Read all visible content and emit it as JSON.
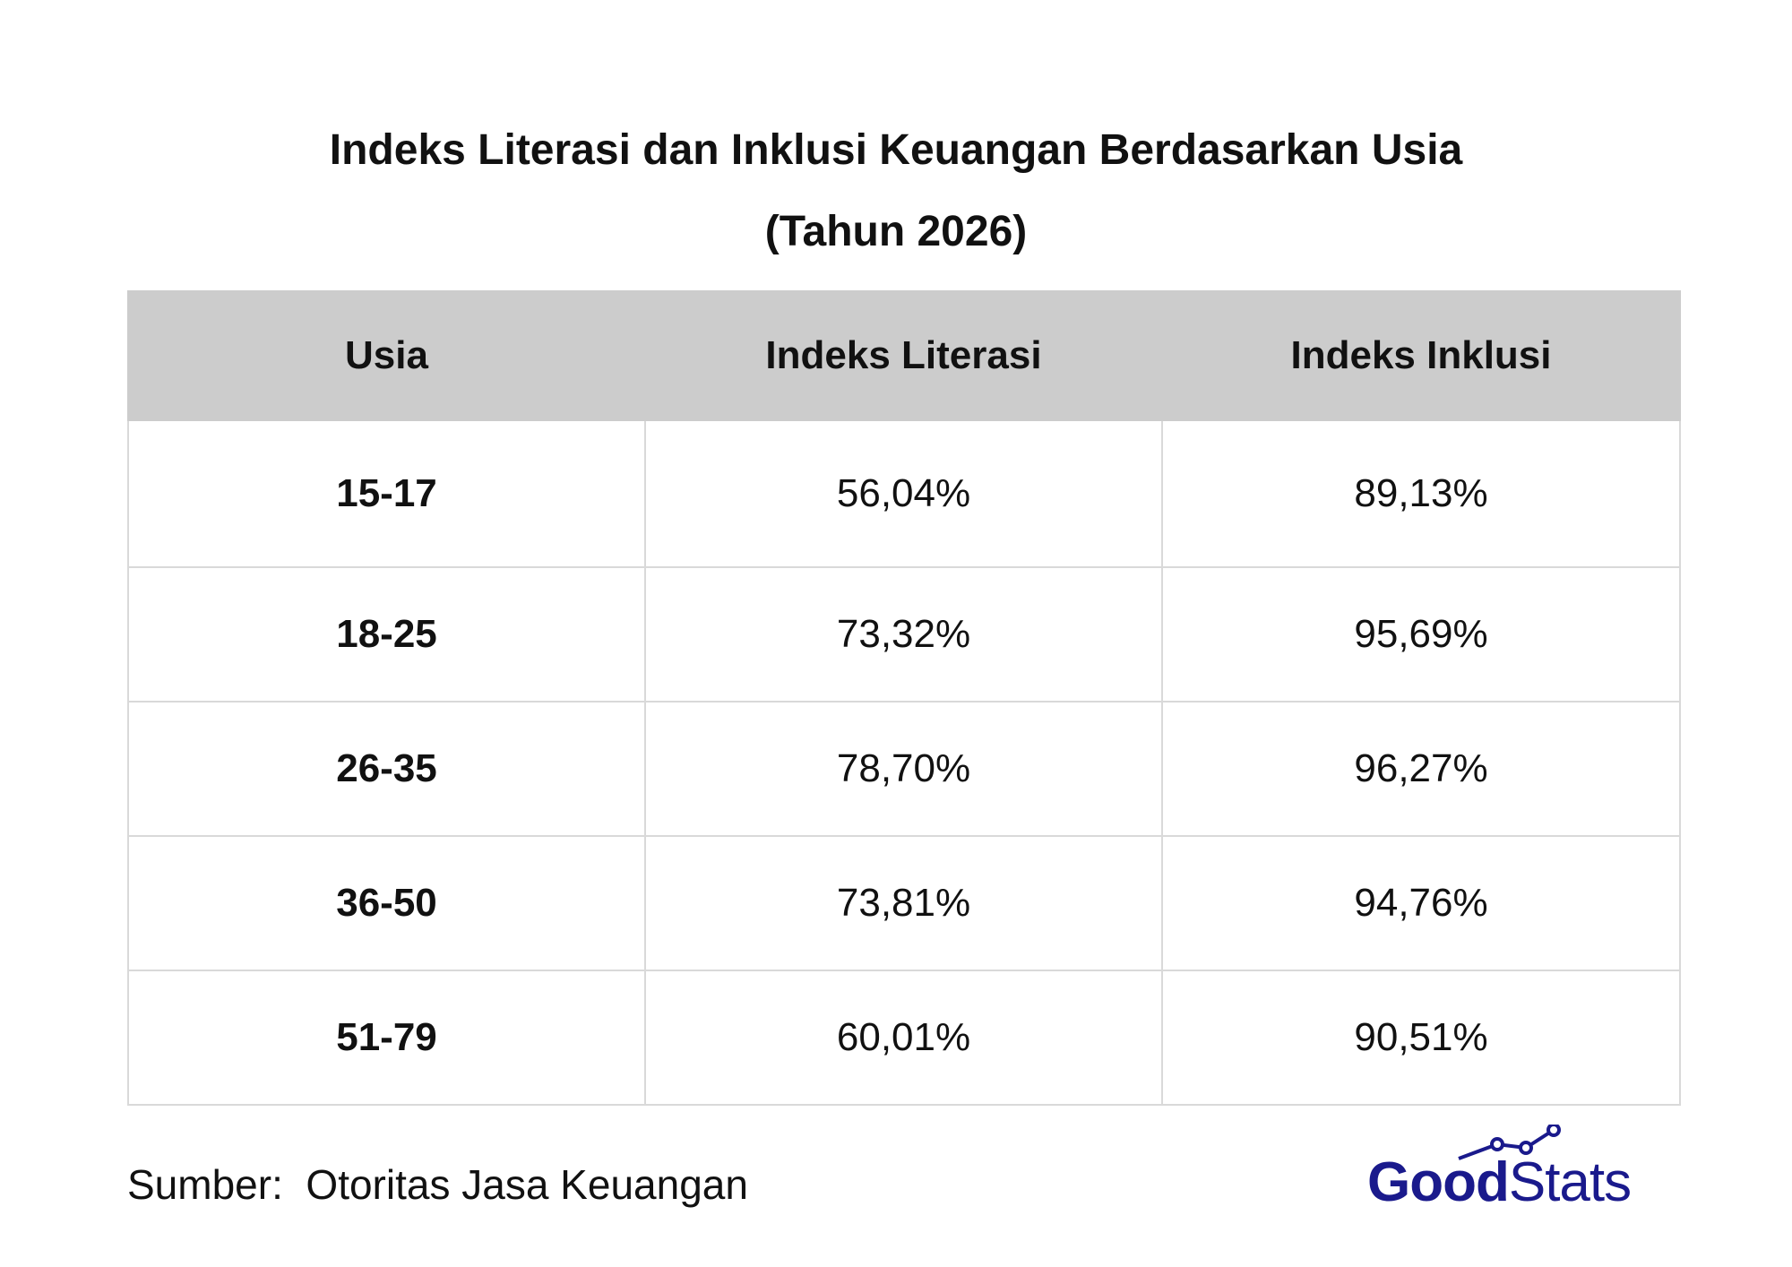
{
  "chart_data": {
    "type": "table",
    "title": "Indeks Literasi dan Inklusi Keuangan Berdasarkan Usia",
    "subtitle": "(Tahun 2026)",
    "columns": [
      "Usia",
      "Indeks Literasi",
      "Indeks Inklusi"
    ],
    "rows": [
      {
        "age": "15-17",
        "literasi": "56,04%",
        "inklusi": "89,13%"
      },
      {
        "age": "18-25",
        "literasi": "73,32%",
        "inklusi": "95,69%"
      },
      {
        "age": "26-35",
        "literasi": "78,70%",
        "inklusi": "96,27%"
      },
      {
        "age": "36-50",
        "literasi": "73,81%",
        "inklusi": "94,76%"
      },
      {
        "age": "51-79",
        "literasi": "60,01%",
        "inklusi": "90,51%"
      }
    ],
    "source": "Sumber:  Otoritas Jasa Keuangan"
  },
  "logo": {
    "text_bold": "Good",
    "text_regular": "Stats",
    "color": "#1a1a8c"
  },
  "colors": {
    "header_bg": "#cccccc",
    "grid": "#d9d9d9",
    "text": "#111111"
  }
}
